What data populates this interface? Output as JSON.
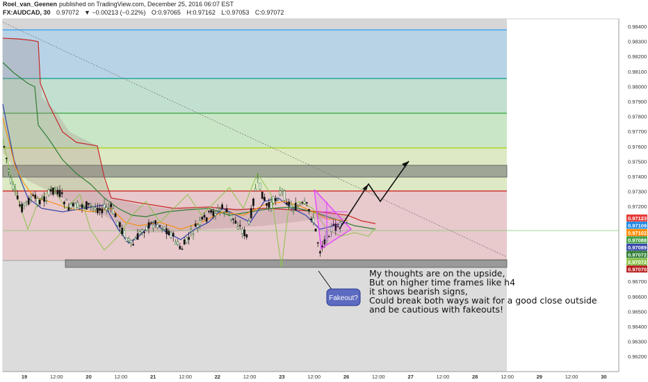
{
  "header": {
    "author": "Roel_van_Geenen",
    "published": "published on TradingView.com, December 25, 2016 06:07 EST",
    "symbol": "FX:AUDCAD, 30",
    "last": "0.97072",
    "change": "▼ −0.00213 (−0.22%)",
    "open": "O:0.97065",
    "high": "H:0.97162",
    "low": "L:0.97053",
    "close": "C:0.97072"
  },
  "colors": {
    "up": "#2e7d32",
    "down": "#c62828",
    "fib_blue": "#64b5f6",
    "fib_green": "#4caf50",
    "fib_yellow": "#cddc39",
    "fib_red": "#e57373",
    "triangle": "#e040fb",
    "annotation_box": "#5c6bc0"
  },
  "chart_data": {
    "type": "line",
    "symbol": "FX:AUDCAD",
    "timeframe": "30",
    "x_ticks": [
      "19",
      "12:00",
      "20",
      "12:00",
      "21",
      "12:00",
      "22",
      "12:00",
      "23",
      "12:00",
      "26",
      "12:00",
      "27",
      "12:00",
      "28",
      "12:00",
      "29",
      "12:00",
      "30"
    ],
    "y_ticks": [
      "0.98400",
      "0.98300",
      "0.98200",
      "0.98100",
      "0.98000",
      "0.97900",
      "0.97800",
      "0.97700",
      "0.97600",
      "0.97500",
      "0.97400",
      "0.97300",
      "0.97200",
      "0.97100",
      "0.97000",
      "0.96900",
      "0.96800",
      "0.96700",
      "0.96600",
      "0.96500",
      "0.96400",
      "0.96300",
      "0.96200"
    ],
    "ylim": [
      0.9617,
      0.9854
    ],
    "price_tags": [
      {
        "label": "0.97123",
        "value": 0.97123,
        "color": "#e53935"
      },
      {
        "label": "0.97109",
        "value": 0.97109,
        "color": "#1e88e5"
      },
      {
        "label": "0.97102",
        "value": 0.97102,
        "color": "#fb8c00"
      },
      {
        "label": "0.97088",
        "value": 0.97088,
        "color": "#43a047"
      },
      {
        "label": "0.97089",
        "value": 0.97089,
        "color": "#3949ab"
      },
      {
        "label": "0.97072",
        "value": 0.97072,
        "color": "#2e7d32"
      },
      {
        "label": "0.97072",
        "value": 0.97072,
        "color": "#8bc34a"
      },
      {
        "label": "0.97070",
        "value": 0.9707,
        "color": "#b71c1c"
      }
    ],
    "annotations": {
      "fakeout": "Fakeout?",
      "thoughts": [
        "My thoughts are on the upside,",
        "But on higher time frames like h4",
        "it shows bearish signs,",
        "Could break both ways wait for a good close outside",
        "and be cautious with fakeouts!"
      ]
    }
  }
}
